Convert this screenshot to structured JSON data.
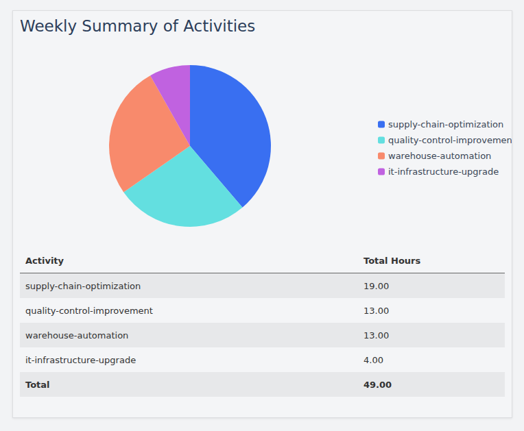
{
  "chart_data": {
    "type": "pie",
    "title": "Weekly Summary of Activities",
    "categories": [
      "supply-chain-optimization",
      "quality-control-improvement",
      "warehouse-automation",
      "it-infrastructure-upgrade"
    ],
    "values": [
      19,
      13,
      13,
      4
    ],
    "colors": [
      "#396ff1",
      "#63dfe0",
      "#f88a6c",
      "#c062e0"
    ],
    "legend": "right"
  },
  "table": {
    "header": [
      "Activity",
      "Total Hours"
    ],
    "rows": [
      [
        "supply-chain-optimization",
        "19.00"
      ],
      [
        "quality-control-improvement",
        "13.00"
      ],
      [
        "warehouse-automation",
        "13.00"
      ],
      [
        "it-infrastructure-upgrade",
        "4.00"
      ]
    ],
    "total": [
      "Total",
      "49.00"
    ]
  }
}
